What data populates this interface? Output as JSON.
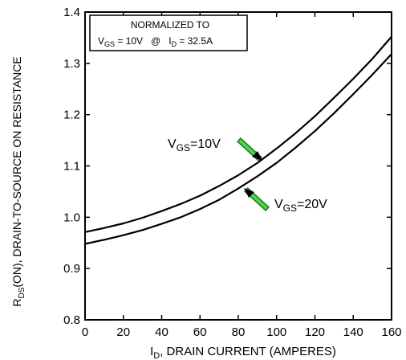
{
  "chart_data": {
    "type": "line",
    "xlabel": {
      "pre": "I",
      "sub": "D",
      "post": ", DRAIN CURRENT (AMPERES)"
    },
    "ylabel": {
      "pre": "R",
      "sub": "DS",
      "post": "(ON), DRAIN-TO-SOURCE ON RESISTANCE"
    },
    "xlim": [
      0,
      160
    ],
    "ylim": [
      0.8,
      1.4
    ],
    "xticks": [
      0,
      20,
      40,
      60,
      80,
      100,
      120,
      140,
      160
    ],
    "yticks": [
      0.8,
      0.9,
      1.0,
      1.1,
      1.2,
      1.3,
      1.4
    ],
    "grid": false,
    "note": {
      "line1": "NORMALIZED TO",
      "v_pre": "V",
      "v_sub": "GS",
      "v_post": " = 10V   @   I",
      "i_sub": "D",
      "i_post": " = 32.5A"
    },
    "series": [
      {
        "name": "VGS=10V",
        "label_pre": "V",
        "label_sub": "GS",
        "label_post": "=10V",
        "x": [
          0,
          10,
          20,
          30,
          40,
          50,
          60,
          70,
          80,
          90,
          100,
          110,
          120,
          130,
          140,
          150,
          160
        ],
        "values": [
          0.971,
          0.979,
          0.988,
          0.999,
          1.012,
          1.026,
          1.042,
          1.061,
          1.082,
          1.106,
          1.134,
          1.164,
          1.197,
          1.233,
          1.27,
          1.309,
          1.352
        ]
      },
      {
        "name": "VGS=20V",
        "label_pre": "V",
        "label_sub": "GS",
        "label_post": "=20V",
        "x": [
          0,
          10,
          20,
          30,
          40,
          50,
          60,
          70,
          80,
          90,
          100,
          110,
          120,
          130,
          140,
          150,
          160
        ],
        "values": [
          0.948,
          0.956,
          0.965,
          0.975,
          0.987,
          1.0,
          1.016,
          1.034,
          1.056,
          1.08,
          1.106,
          1.136,
          1.168,
          1.203,
          1.24,
          1.278,
          1.318
        ]
      }
    ]
  }
}
